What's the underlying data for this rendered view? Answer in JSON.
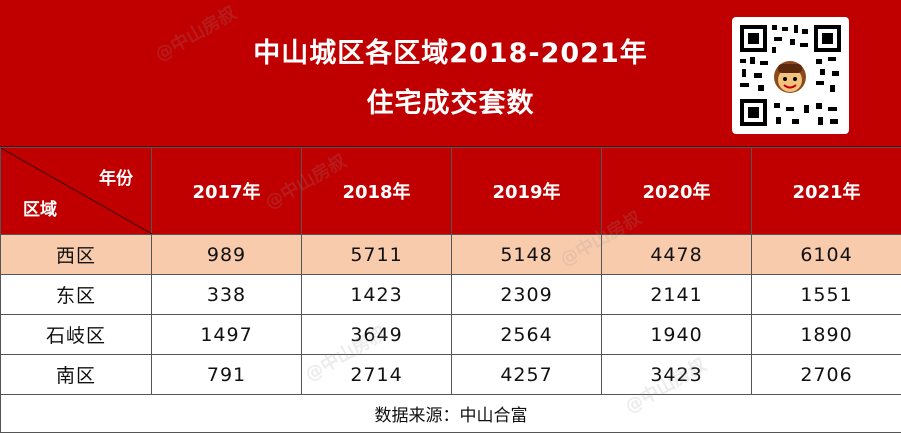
{
  "title": {
    "line1": "中山城区各区域2018-2021年",
    "line2": "住宅成交套数"
  },
  "header": {
    "corner_year": "年份",
    "corner_region": "区域",
    "years": [
      "2017年",
      "2018年",
      "2019年",
      "2020年",
      "2021年"
    ]
  },
  "rows": [
    {
      "region": "西区",
      "values": [
        "989",
        "5711",
        "5148",
        "4478",
        "6104"
      ]
    },
    {
      "region": "东区",
      "values": [
        "338",
        "1423",
        "2309",
        "2141",
        "1551"
      ]
    },
    {
      "region": "石岐区",
      "values": [
        "1497",
        "3649",
        "2564",
        "1940",
        "1890"
      ]
    },
    {
      "region": "南区",
      "values": [
        "791",
        "2714",
        "4257",
        "3423",
        "2706"
      ]
    }
  ],
  "source": "数据来源：中山合富",
  "watermark": "@中山房叔",
  "colors": {
    "header_red": "#c00000",
    "highlight_row": "#f8cbad"
  },
  "chart_data": {
    "type": "table",
    "title": "中山城区各区域2018-2021年住宅成交套数",
    "columns": [
      "2017年",
      "2018年",
      "2019年",
      "2020年",
      "2021年"
    ],
    "rows": [
      "西区",
      "东区",
      "石岐区",
      "南区"
    ],
    "series": [
      {
        "name": "西区",
        "values": [
          989,
          5711,
          5148,
          4478,
          6104
        ]
      },
      {
        "name": "东区",
        "values": [
          338,
          1423,
          2309,
          2141,
          1551
        ]
      },
      {
        "name": "石岐区",
        "values": [
          1497,
          3649,
          2564,
          1940,
          1890
        ]
      },
      {
        "name": "南区",
        "values": [
          791,
          2714,
          4257,
          3423,
          2706
        ]
      }
    ]
  }
}
